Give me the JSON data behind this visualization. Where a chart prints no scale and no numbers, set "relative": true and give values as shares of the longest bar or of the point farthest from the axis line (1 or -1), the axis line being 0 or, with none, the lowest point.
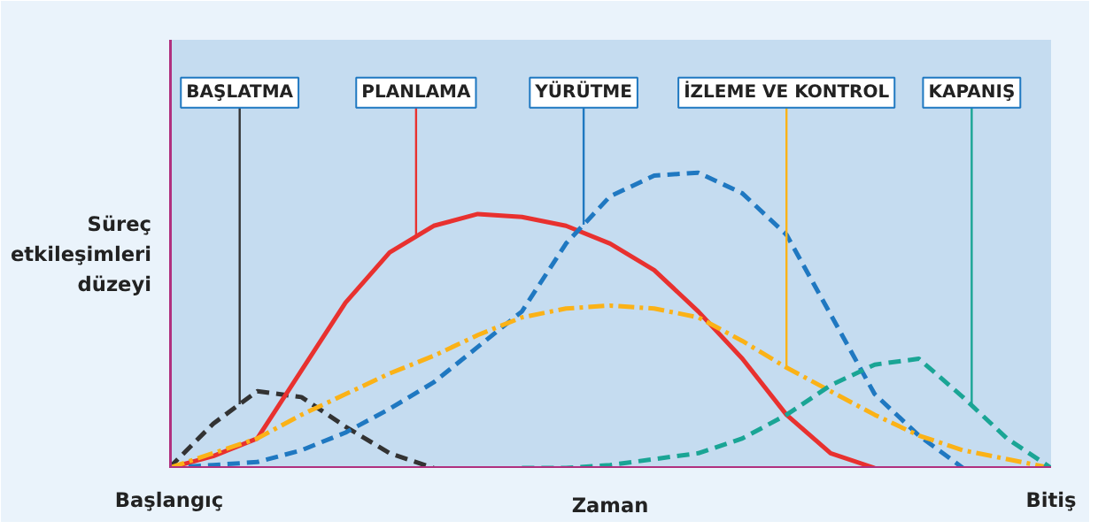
{
  "chart_data": {
    "type": "line",
    "relative": true,
    "xlabel": "Zaman",
    "ylabel": "Süreç etkileşimleri düzeyi",
    "categories": [
      "Başlangıç",
      null,
      null,
      null,
      null,
      null,
      null,
      null,
      null,
      null,
      null,
      null,
      null,
      null,
      null,
      null,
      null,
      null,
      null,
      null,
      "Bitiş"
    ],
    "marker": "none",
    "grid": false,
    "series": [
      {
        "name": "BAŞLATMA",
        "color": "#333333",
        "line_style": "dashed",
        "values": [
          0,
          0.15,
          0.26,
          0.24,
          0.14,
          0.05,
          0,
          null,
          null,
          null,
          null,
          null,
          null,
          null,
          null,
          null,
          null,
          null,
          null,
          null,
          null
        ]
      },
      {
        "name": "PLANLAMA",
        "color": "#e8312f",
        "line_style": "solid",
        "values": [
          0,
          0.04,
          0.1,
          0.33,
          0.56,
          0.73,
          0.82,
          0.86,
          0.85,
          0.82,
          0.76,
          0.67,
          0.53,
          0.37,
          0.18,
          0.05,
          0,
          null,
          null,
          null,
          null
        ]
      },
      {
        "name": "YÜRÜTME",
        "color": "#1f78c1",
        "line_style": "dashed",
        "values": [
          0,
          0.01,
          0.02,
          0.06,
          0.12,
          0.2,
          0.29,
          0.41,
          0.53,
          0.76,
          0.92,
          0.99,
          1.0,
          0.93,
          0.79,
          0.52,
          0.25,
          0.11,
          0,
          null,
          null
        ]
      },
      {
        "name": "İZLEME VE KONTROL",
        "color": "#fbb217",
        "line_style": "dashdot",
        "values": [
          0,
          0.05,
          0.1,
          0.18,
          0.25,
          0.32,
          0.38,
          0.45,
          0.51,
          0.54,
          0.55,
          0.54,
          0.51,
          0.43,
          0.34,
          0.26,
          0.18,
          0.11,
          0.06,
          0.03,
          0
        ]
      },
      {
        "name": "KAPANIŞ",
        "color": "#1aa595",
        "line_style": "dashed",
        "values": [
          null,
          null,
          null,
          null,
          null,
          null,
          null,
          null,
          0,
          0,
          0.01,
          0.03,
          0.05,
          0.1,
          0.18,
          0.28,
          0.35,
          0.37,
          0.24,
          0.1,
          0
        ]
      }
    ]
  }
}
